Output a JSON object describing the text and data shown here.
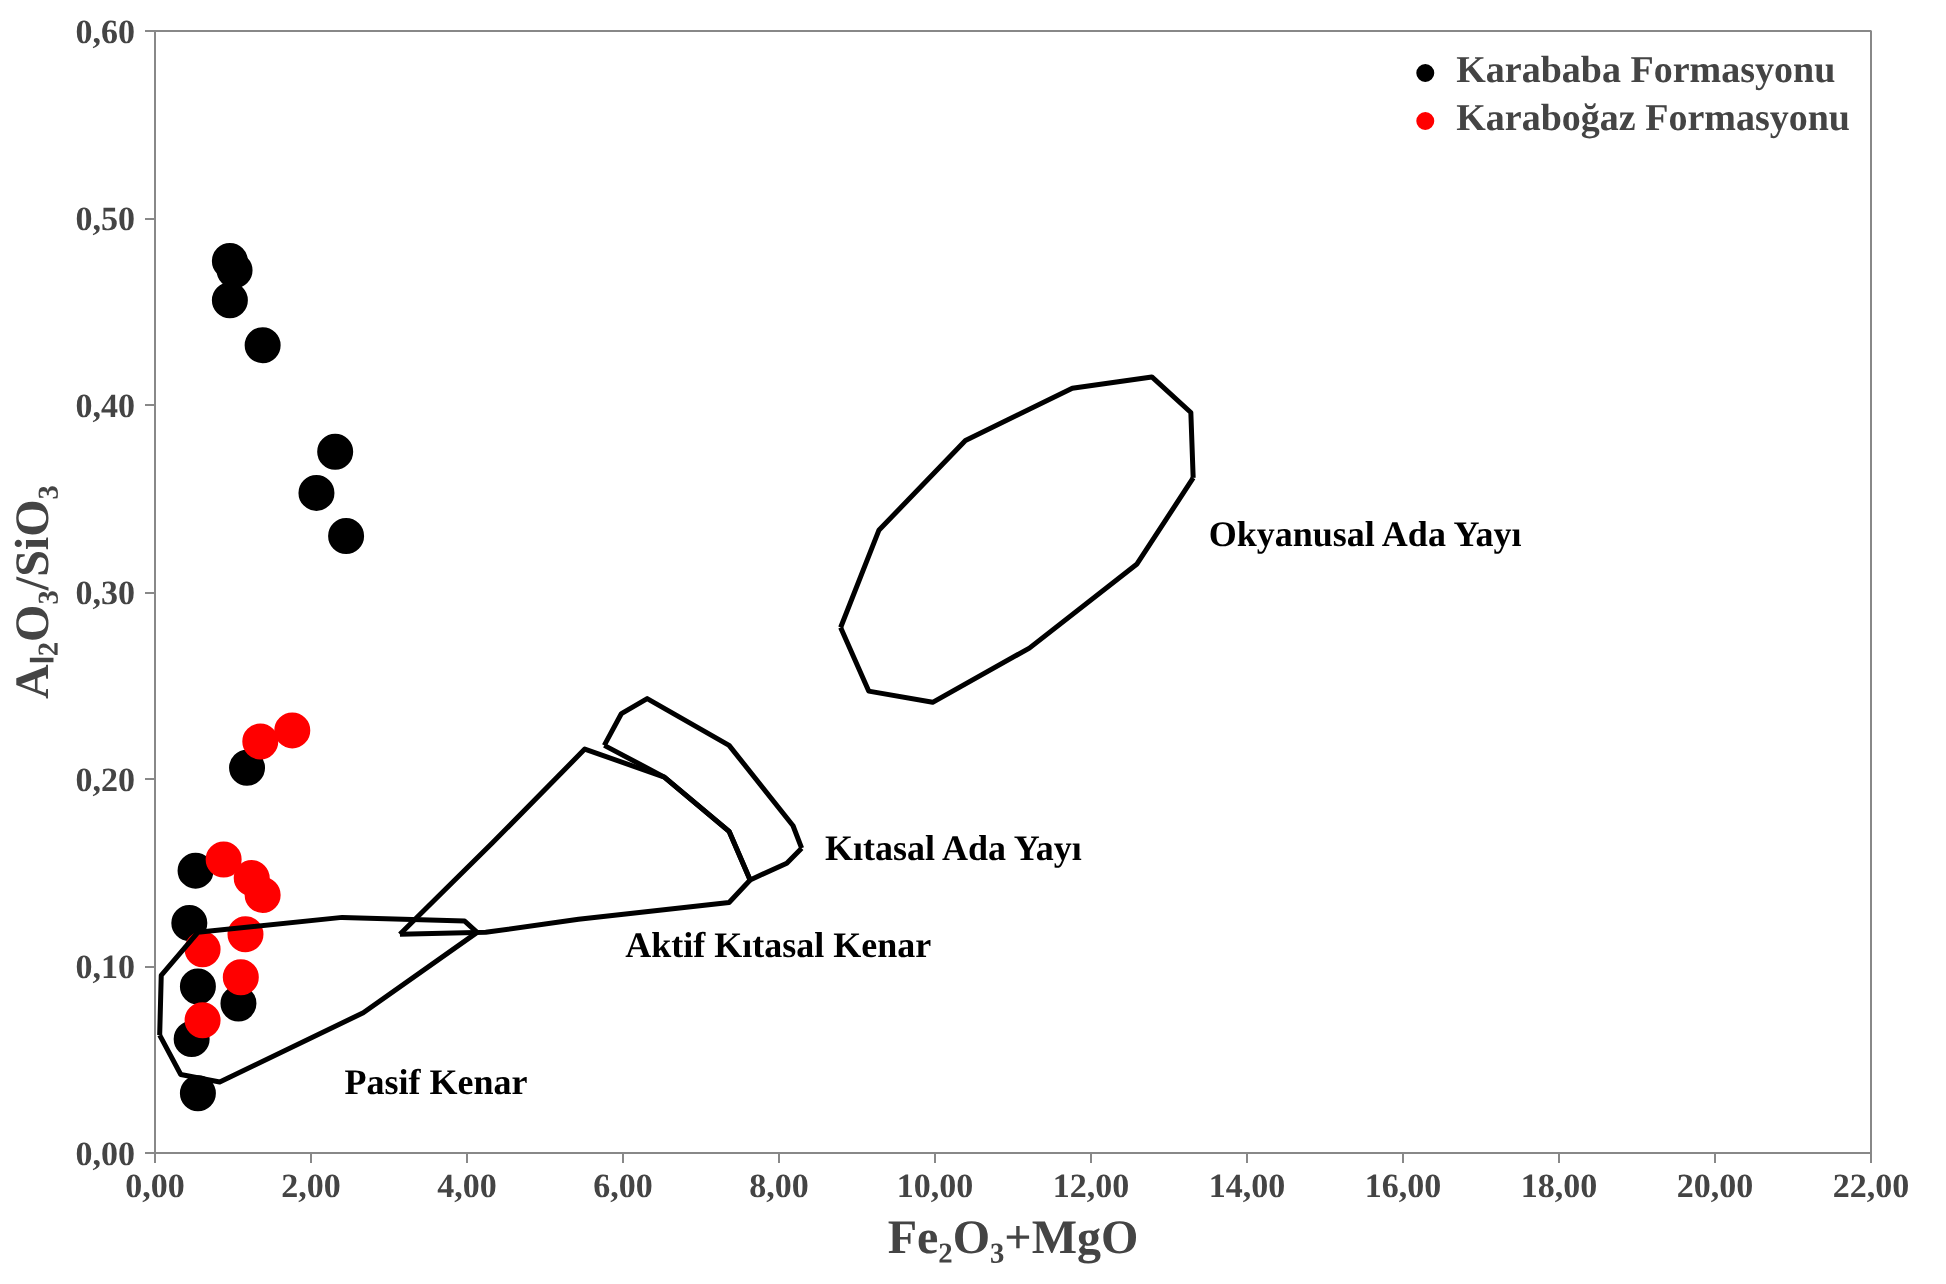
{
  "chart_data": {
    "type": "scatter",
    "xlabel": "Fe₂O₃+MgO",
    "ylabel": "Aₗ₂O₃/SiO₃",
    "xlim": [
      0,
      22
    ],
    "ylim": [
      0,
      0.6
    ],
    "xticks": [
      {
        "value": 0,
        "label": "0,00"
      },
      {
        "value": 2,
        "label": "2,00"
      },
      {
        "value": 4,
        "label": "4,00"
      },
      {
        "value": 6,
        "label": "6,00"
      },
      {
        "value": 8,
        "label": "8,00"
      },
      {
        "value": 10,
        "label": "10,00"
      },
      {
        "value": 12,
        "label": "12,00"
      },
      {
        "value": 14,
        "label": "14,00"
      },
      {
        "value": 16,
        "label": "16,00"
      },
      {
        "value": 18,
        "label": "18,00"
      },
      {
        "value": 20,
        "label": "20,00"
      },
      {
        "value": 22,
        "label": "22,00"
      }
    ],
    "yticks": [
      {
        "value": 0,
        "label": "0,00"
      },
      {
        "value": 0.1,
        "label": "0,10"
      },
      {
        "value": 0.2,
        "label": "0,20"
      },
      {
        "value": 0.3,
        "label": "0,30"
      },
      {
        "value": 0.4,
        "label": "0,40"
      },
      {
        "value": 0.5,
        "label": "0,50"
      },
      {
        "value": 0.6,
        "label": "0,60"
      }
    ],
    "grid": false,
    "legend": "top right",
    "marker": "circle",
    "series": [
      {
        "name": "Karababa Formasyonu",
        "color": "#000000",
        "x": [
          0.96,
          1.02,
          0.96,
          1.38,
          2.31,
          2.07,
          2.45,
          1.18,
          0.52,
          0.44,
          0.55,
          1.07,
          0.47,
          0.55
        ],
        "values": [
          0.477,
          0.472,
          0.456,
          0.432,
          0.375,
          0.353,
          0.33,
          0.206,
          0.151,
          0.123,
          0.089,
          0.08,
          0.061,
          0.032
        ]
      },
      {
        "name": "Karaboğaz Formasyonu",
        "color": "#ff0000",
        "x": [
          1.35,
          1.76,
          0.88,
          1.24,
          1.38,
          1.16,
          0.61,
          1.1,
          0.61
        ],
        "values": [
          0.22,
          0.226,
          0.157,
          0.147,
          0.138,
          0.117,
          0.109,
          0.094,
          0.071
        ]
      },
      {
        "type": "line",
        "marker": "none",
        "color": "#000000",
        "x": [
          0.06,
          0.08,
          0.55,
          2.4,
          3.97,
          4.13
        ],
        "values": [
          0.063,
          0.095,
          0.118,
          0.126,
          0.124,
          0.118
        ]
      },
      {
        "name": "Pasif Kenar",
        "type": "line",
        "marker": "none",
        "color": "#000000",
        "x": [
          0.06,
          0.33,
          0.83,
          2.67,
          4.13
        ],
        "values": [
          0.063,
          0.042,
          0.038,
          0.075,
          0.118
        ]
      },
      {
        "type": "line",
        "marker": "none",
        "color": "#000000",
        "x": [
          3.14,
          4.33,
          5.51,
          6.53,
          7.36,
          7.63
        ],
        "values": [
          0.117,
          0.166,
          0.216,
          0.201,
          0.172,
          0.146
        ]
      },
      {
        "name": "Aktif Kıtasal Kenar",
        "type": "line",
        "marker": "none",
        "color": "#000000",
        "x": [
          3.14,
          4.24,
          5.43,
          7.36,
          7.63
        ],
        "values": [
          0.117,
          0.118,
          0.125,
          0.134,
          0.146
        ]
      },
      {
        "type": "line",
        "marker": "none",
        "color": "#000000",
        "x": [
          5.76,
          5.98,
          6.31,
          7.36,
          8.18,
          8.29
        ],
        "values": [
          0.218,
          0.235,
          0.243,
          0.218,
          0.175,
          0.163
        ]
      },
      {
        "name": "Kıtasal Ada Yayı",
        "type": "line",
        "marker": "none",
        "color": "#000000",
        "x": [
          5.76,
          6.53,
          7.36,
          7.63,
          8.1,
          8.29
        ],
        "values": [
          0.218,
          0.201,
          0.172,
          0.146,
          0.155,
          0.163
        ]
      },
      {
        "type": "line",
        "marker": "none",
        "color": "#000000",
        "x": [
          8.79,
          9.28,
          10.39,
          11.76,
          12.78,
          13.28,
          13.31
        ],
        "values": [
          0.281,
          0.333,
          0.381,
          0.409,
          0.415,
          0.396,
          0.361
        ]
      },
      {
        "name": "Okyanusal  Ada Yayı",
        "type": "line",
        "marker": "none",
        "color": "#000000",
        "x": [
          8.79,
          9.15,
          9.97,
          11.21,
          12.59,
          13.31
        ],
        "values": [
          0.281,
          0.247,
          0.241,
          0.27,
          0.315,
          0.361
        ]
      }
    ]
  }
}
